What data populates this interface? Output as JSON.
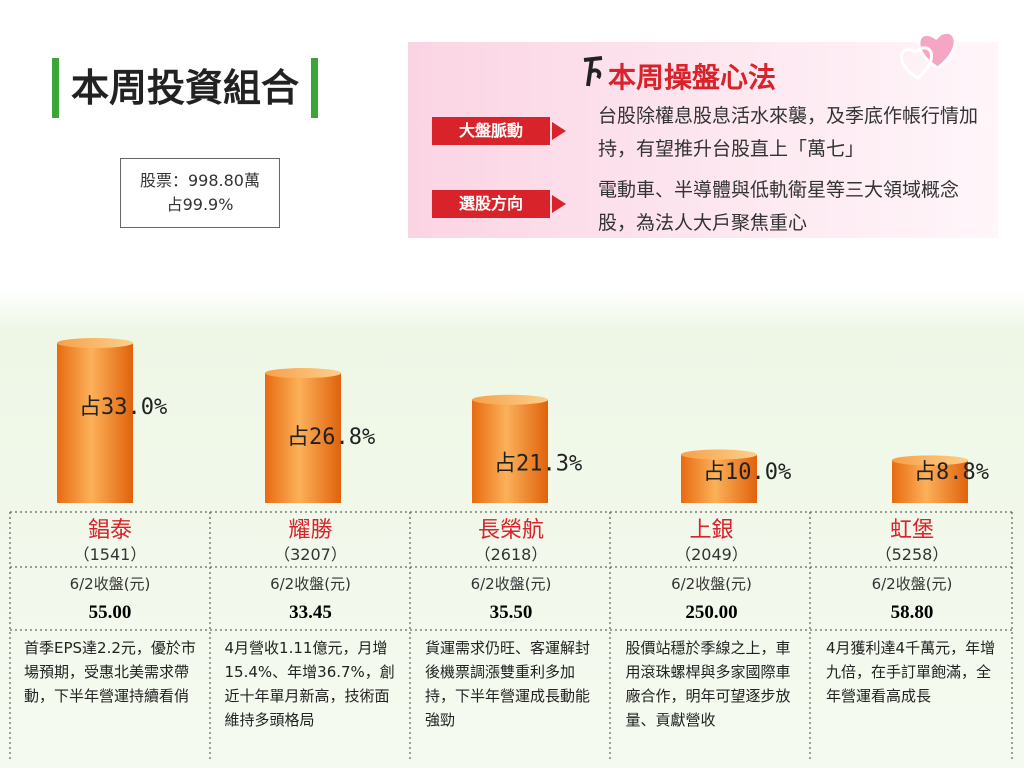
{
  "header": {
    "title": "本周投資組合",
    "summary_line1": "股票：998.80萬",
    "summary_line2": "占99.9%"
  },
  "panel": {
    "title": "本周操盤心法",
    "items": [
      {
        "label": "大盤脈動",
        "text": "台股除權息股息活水來襲，及季底作帳行情加持，有望推升台股直上「萬七」"
      },
      {
        "label": "選股方向",
        "text": "電動車、半導體與低軌衛星等三大領域概念股，為法人大戶聚焦重心"
      }
    ]
  },
  "chart_data": {
    "type": "bar",
    "categories": [
      "錩泰",
      "耀勝",
      "長榮航",
      "上銀",
      "虹堡"
    ],
    "codes": [
      "（1541）",
      "（3207）",
      "（2618）",
      "（2049）",
      "（5258）"
    ],
    "values": [
      33.0,
      26.8,
      21.3,
      10.0,
      8.8
    ],
    "value_labels": [
      "占33.0%",
      "占26.8%",
      "占21.3%",
      "占10.0%",
      "占8.8%"
    ],
    "close_labels": [
      "6/2收盤(元)",
      "6/2收盤(元)",
      "6/2收盤(元)",
      "6/2收盤(元)",
      "6/2收盤(元)"
    ],
    "prices": [
      "55.00",
      "33.45",
      "35.50",
      "250.00",
      "58.80"
    ],
    "notes": [
      "首季EPS達2.2元，優於市場預期，受惠北美需求帶動，下半年營運持續看俏",
      "4月營收1.11億元，月增15.4%、年增36.7%，創近十年單月新高，技術面維持多頭格局",
      "貨運需求仍旺、客運解封後機票調漲雙重利多加持，下半年營運成長動能強勁",
      "股價站穩於季線之上，車用滾珠螺桿與多家國際車廠合作，明年可望逐步放量、貢獻營收",
      "4月獲利達4千萬元，年增九倍，在手訂單飽滿，全年營運看高成長"
    ],
    "color": "#f08a2a"
  }
}
